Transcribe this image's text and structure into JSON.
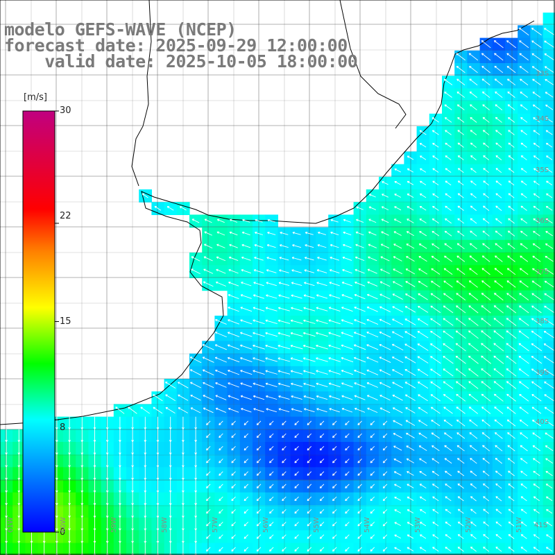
{
  "title": {
    "line1": "modelo GEFS-WAVE (NCEP)",
    "line2": "forecast date: 2025-09-29 12:00:00",
    "line3": "    valid date: 2025-10-05 18:00:00"
  },
  "colorbar": {
    "unit": "[m/s]",
    "range": [
      0,
      30
    ],
    "ticks": [
      {
        "label": "30",
        "value": 30
      },
      {
        "label": "22",
        "value": 22
      },
      {
        "label": "15",
        "value": 15
      },
      {
        "label": "8",
        "value": 8
      },
      {
        "label": "0",
        "value": 0
      }
    ],
    "colors": [
      "#0000ff",
      "#00ffff",
      "#00ff00",
      "#ffff00",
      "#ff8000",
      "#ff0000",
      "#c00080"
    ]
  },
  "lat_labels": [
    "33S",
    "34S",
    "35S",
    "36S",
    "37S",
    "38S",
    "39S",
    "40S",
    "41S"
  ],
  "lon_labels": [
    "61W",
    "60W",
    "59W",
    "58W",
    "57W",
    "56W",
    "55W",
    "54W",
    "53W",
    "52W",
    "51W"
  ]
}
